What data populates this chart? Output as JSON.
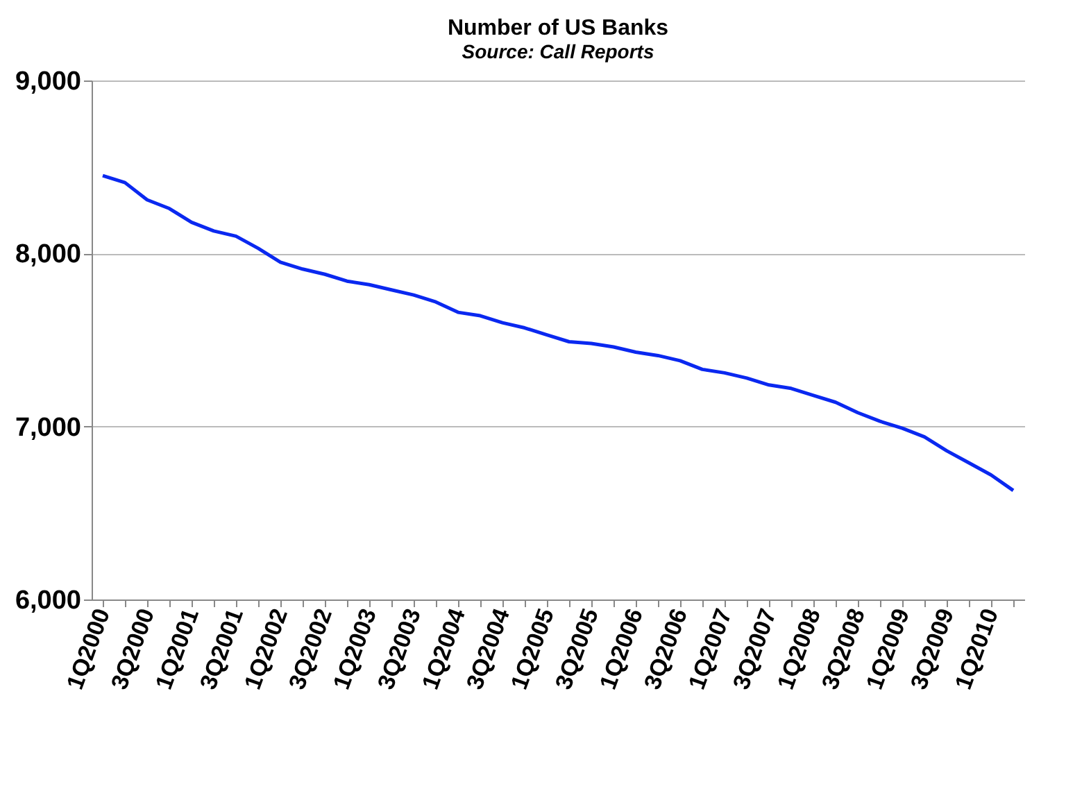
{
  "chart_data": {
    "type": "line",
    "title": "Number of US Banks",
    "subtitle": "Source: Call Reports",
    "categories": [
      "1Q2000",
      null,
      "3Q2000",
      null,
      "1Q2001",
      null,
      "3Q2001",
      null,
      "1Q2002",
      null,
      "3Q2002",
      null,
      "1Q2003",
      null,
      "3Q2003",
      null,
      "1Q2004",
      null,
      "3Q2004",
      null,
      "1Q2005",
      null,
      "3Q2005",
      null,
      "1Q2006",
      null,
      "3Q2006",
      null,
      "1Q2007",
      null,
      "3Q2007",
      null,
      "1Q2008",
      null,
      "3Q2008",
      null,
      "1Q2009",
      null,
      "3Q2009",
      null,
      "1Q2010",
      null
    ],
    "series": [
      {
        "color": "#0a28f0",
        "values": [
          8450,
          8410,
          8310,
          8260,
          8180,
          8130,
          8100,
          8030,
          7950,
          7910,
          7880,
          7840,
          7820,
          7790,
          7760,
          7720,
          7660,
          7640,
          7600,
          7570,
          7530,
          7490,
          7480,
          7460,
          7430,
          7410,
          7380,
          7330,
          7310,
          7280,
          7240,
          7220,
          7180,
          7140,
          7080,
          7030,
          6990,
          6940,
          6860,
          6790,
          6720,
          6630
        ]
      }
    ],
    "ylim": [
      6000,
      9000
    ],
    "yticks": [
      {
        "value": 6000,
        "label": "6,000"
      },
      {
        "value": 7000,
        "label": "7,000"
      },
      {
        "value": 8000,
        "label": "8,000"
      },
      {
        "value": 9000,
        "label": "9,000"
      }
    ],
    "grid": "y",
    "marker": "none",
    "line_style": "solid"
  }
}
